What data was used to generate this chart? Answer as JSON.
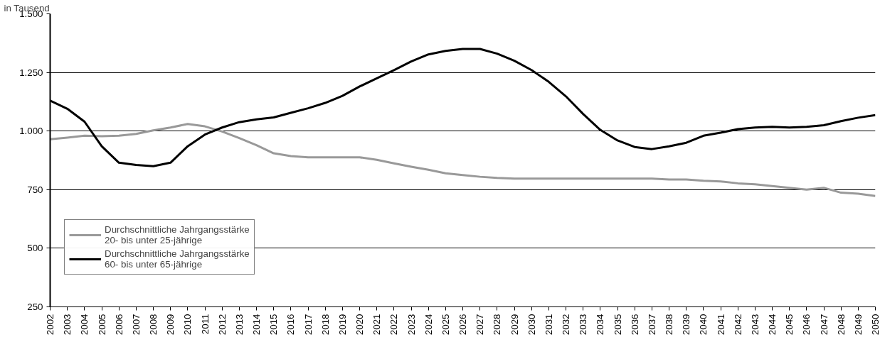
{
  "chart_data": {
    "type": "line",
    "ylabel": "in Tausend",
    "categories": [
      "2002",
      "2003",
      "2004",
      "2005",
      "2006",
      "2007",
      "2008",
      "2009",
      "2010",
      "2011",
      "2012",
      "2013",
      "2014",
      "2015",
      "2016",
      "2017",
      "2018",
      "2019",
      "2020",
      "2021",
      "2022",
      "2023",
      "2024",
      "2025",
      "2026",
      "2027",
      "2028",
      "2029",
      "2030",
      "2031",
      "2032",
      "2033",
      "2034",
      "2035",
      "2036",
      "2037",
      "2038",
      "2039",
      "2040",
      "2041",
      "2042",
      "2043",
      "2044",
      "2045",
      "2046",
      "2047",
      "2048",
      "2049",
      "2050"
    ],
    "series": [
      {
        "name": "Durchschnittliche Jahrgangsstärke\n20- bis unter 25-jährige",
        "color": "#999999",
        "values": [
          965,
          972,
          980,
          978,
          980,
          988,
          1003,
          1015,
          1030,
          1020,
          998,
          970,
          940,
          905,
          893,
          888,
          888,
          888,
          888,
          877,
          862,
          848,
          835,
          820,
          812,
          805,
          800,
          797,
          797,
          797,
          797,
          797,
          797,
          797,
          797,
          797,
          793,
          793,
          788,
          785,
          777,
          773,
          765,
          758,
          750,
          758,
          737,
          733,
          723
        ]
      },
      {
        "name": "Durchschnittliche Jahrgangsstärke\n60- bis unter 65-jährige",
        "color": "#000000",
        "values": [
          1130,
          1095,
          1040,
          935,
          865,
          855,
          850,
          865,
          935,
          985,
          1015,
          1038,
          1050,
          1058,
          1078,
          1097,
          1120,
          1150,
          1190,
          1225,
          1260,
          1297,
          1327,
          1342,
          1350,
          1350,
          1330,
          1300,
          1260,
          1210,
          1148,
          1073,
          1005,
          960,
          932,
          923,
          935,
          950,
          980,
          993,
          1008,
          1015,
          1018,
          1015,
          1018,
          1025,
          1042,
          1057,
          1068
        ]
      }
    ],
    "ylim": [
      250,
      1500
    ],
    "yticks": [
      {
        "value": 250,
        "label": "250"
      },
      {
        "value": 500,
        "label": "500"
      },
      {
        "value": 750,
        "label": "750"
      },
      {
        "value": 1000,
        "label": "1.000"
      },
      {
        "value": 1250,
        "label": "1.250"
      },
      {
        "value": 1500,
        "label": "1.500"
      }
    ],
    "grid": "y",
    "legend": "bottom left",
    "marker": "none",
    "line_style": "solid"
  }
}
